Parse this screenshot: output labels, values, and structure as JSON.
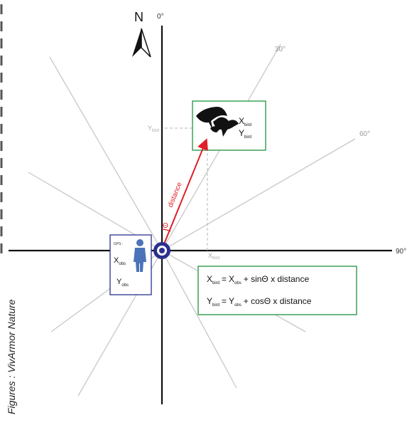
{
  "compass": {
    "north_letter": "N"
  },
  "angles": {
    "a0": "0°",
    "a30": "30°",
    "a60": "60°",
    "a90": "90°"
  },
  "axis_labels": {
    "y_bird": "Y",
    "y_bird_sub": "bird",
    "x_bird": "X",
    "x_bird_sub": "bird"
  },
  "vector": {
    "label": "distance",
    "theta": "Θ"
  },
  "bird_box": {
    "x_main": "X",
    "x_sub": "bird",
    "y_main": "Y",
    "y_sub": "bird"
  },
  "observer_box": {
    "gps": "GPS :",
    "x_main": "X",
    "x_sub": "obs",
    "y_main": "Y",
    "y_sub": "obs"
  },
  "formula": {
    "line1": {
      "lhs": "X",
      "lhs_sub": "bird",
      "eq": "=",
      "term": "X",
      "term_sub": "obs",
      "rest": "+ sinΘ x distance"
    },
    "line2": {
      "lhs": "Y",
      "lhs_sub": "bird",
      "eq": "=",
      "term": "Y",
      "term_sub": "obs",
      "rest": "+ cosΘ x distance"
    }
  },
  "credit": "Figures : VivArmor Nature",
  "colors": {
    "axis": "#111111",
    "ray": "#c8c8c8",
    "green": "#2e9a4a",
    "red": "#e01f26",
    "navy": "#2b2f8f",
    "observer": "#4a73b8",
    "dash": "#b5b5b5"
  }
}
